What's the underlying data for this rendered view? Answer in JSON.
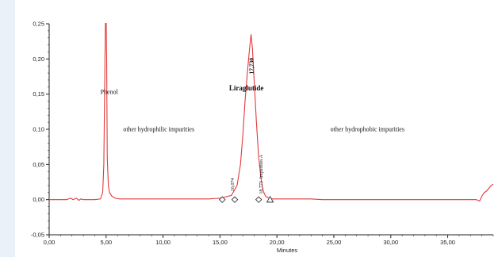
{
  "colors": {
    "trace": "#e23a3a",
    "axis": "#222222",
    "background": "#eaf1f8",
    "panel": "#ffffff"
  },
  "chart_data": {
    "type": "line",
    "xlabel": "Minutes",
    "ylabel": "",
    "xlim": [
      0,
      39
    ],
    "ylim": [
      -0.05,
      0.25
    ],
    "xticks": [
      0,
      5,
      10,
      15,
      20,
      25,
      30,
      35
    ],
    "xtick_labels": [
      "0,00",
      "5,00",
      "10,00",
      "15,00",
      "20,00",
      "25,00",
      "30,00",
      "35,00"
    ],
    "yticks": [
      -0.05,
      0,
      0.05,
      0.1,
      0.15,
      0.2,
      0.25
    ],
    "ytick_labels": [
      "-0,05",
      "0,00",
      "0,05",
      "0,10",
      "0,15",
      "0,20",
      "0,25"
    ],
    "grid": false,
    "series": [
      {
        "x": [
          0,
          1,
          1.5,
          1.9,
          2.1,
          2.4,
          2.6,
          2.8,
          3.0,
          3.5,
          4.0,
          4.5,
          4.7,
          4.8,
          4.9,
          4.95,
          5.0,
          5.05,
          5.1,
          5.2,
          5.3,
          5.5,
          5.8,
          6.2,
          7,
          8,
          9,
          10,
          11,
          12,
          13,
          14,
          15,
          16,
          16.5,
          16.8,
          17.0,
          17.2,
          17.4,
          17.6,
          17.73,
          17.85,
          18.0,
          18.2,
          18.4,
          18.6,
          18.8,
          19.0,
          19.3,
          19.6,
          20,
          21,
          22,
          23,
          24,
          25,
          26,
          27,
          28,
          29,
          30,
          31,
          32,
          33,
          34,
          35,
          36,
          37,
          37.5,
          37.8,
          38.0,
          38.2,
          38.4,
          38.6,
          38.8,
          39
        ],
        "y": [
          0.0,
          0.0,
          0.0,
          0.002,
          0.0,
          0.002,
          -0.001,
          0.001,
          0.0,
          0.0,
          0.0,
          0.001,
          0.01,
          0.05,
          0.2,
          0.26,
          0.26,
          0.2,
          0.06,
          0.02,
          0.01,
          0.005,
          0.002,
          0.001,
          0.001,
          0.001,
          0.001,
          0.001,
          0.001,
          0.001,
          0.001,
          0.001,
          0.002,
          0.006,
          0.02,
          0.05,
          0.09,
          0.14,
          0.18,
          0.215,
          0.235,
          0.215,
          0.17,
          0.11,
          0.06,
          0.03,
          0.012,
          0.005,
          0.002,
          0.001,
          0.001,
          0.001,
          0.001,
          0.001,
          0.0,
          0.0,
          0.0,
          0.0,
          0.0,
          0.0,
          0.0,
          0.0,
          0.0,
          0.0,
          0.0,
          0.0,
          0.0,
          0.0,
          0.0,
          -0.002,
          0.005,
          0.01,
          0.012,
          0.016,
          0.02,
          0.022
        ]
      }
    ],
    "markers": [
      {
        "shape": "diamond",
        "x": 15.2,
        "y": 0
      },
      {
        "shape": "diamond",
        "x": 16.3,
        "y": 0
      },
      {
        "shape": "diamond",
        "x": 18.4,
        "y": 0
      },
      {
        "shape": "triangle",
        "x": 19.4,
        "y": 0
      }
    ],
    "annotations": [
      {
        "text": "Phenol",
        "x": 4.5,
        "y": 0.15,
        "style": "normal"
      },
      {
        "text": "other hydrophilic impurities",
        "x": 6.5,
        "y": 0.097,
        "style": "normal"
      },
      {
        "text": "Liraglutide",
        "x": 15.8,
        "y": 0.155,
        "style": "bold"
      },
      {
        "text": "17,730",
        "x": 17.73,
        "y": 0.19,
        "style": "rotated-bold"
      },
      {
        "text": "16,074",
        "x": 16.1,
        "y": 0.012,
        "style": "rotated-small"
      },
      {
        "text": "Impurities A",
        "x": 18.6,
        "y": 0.03,
        "style": "rotated-small"
      },
      {
        "text": "18,773",
        "x": 18.6,
        "y": 0.008,
        "style": "rotated-small"
      },
      {
        "text": "other hydrophobic impurities",
        "x": 24.7,
        "y": 0.097,
        "style": "normal"
      }
    ]
  }
}
